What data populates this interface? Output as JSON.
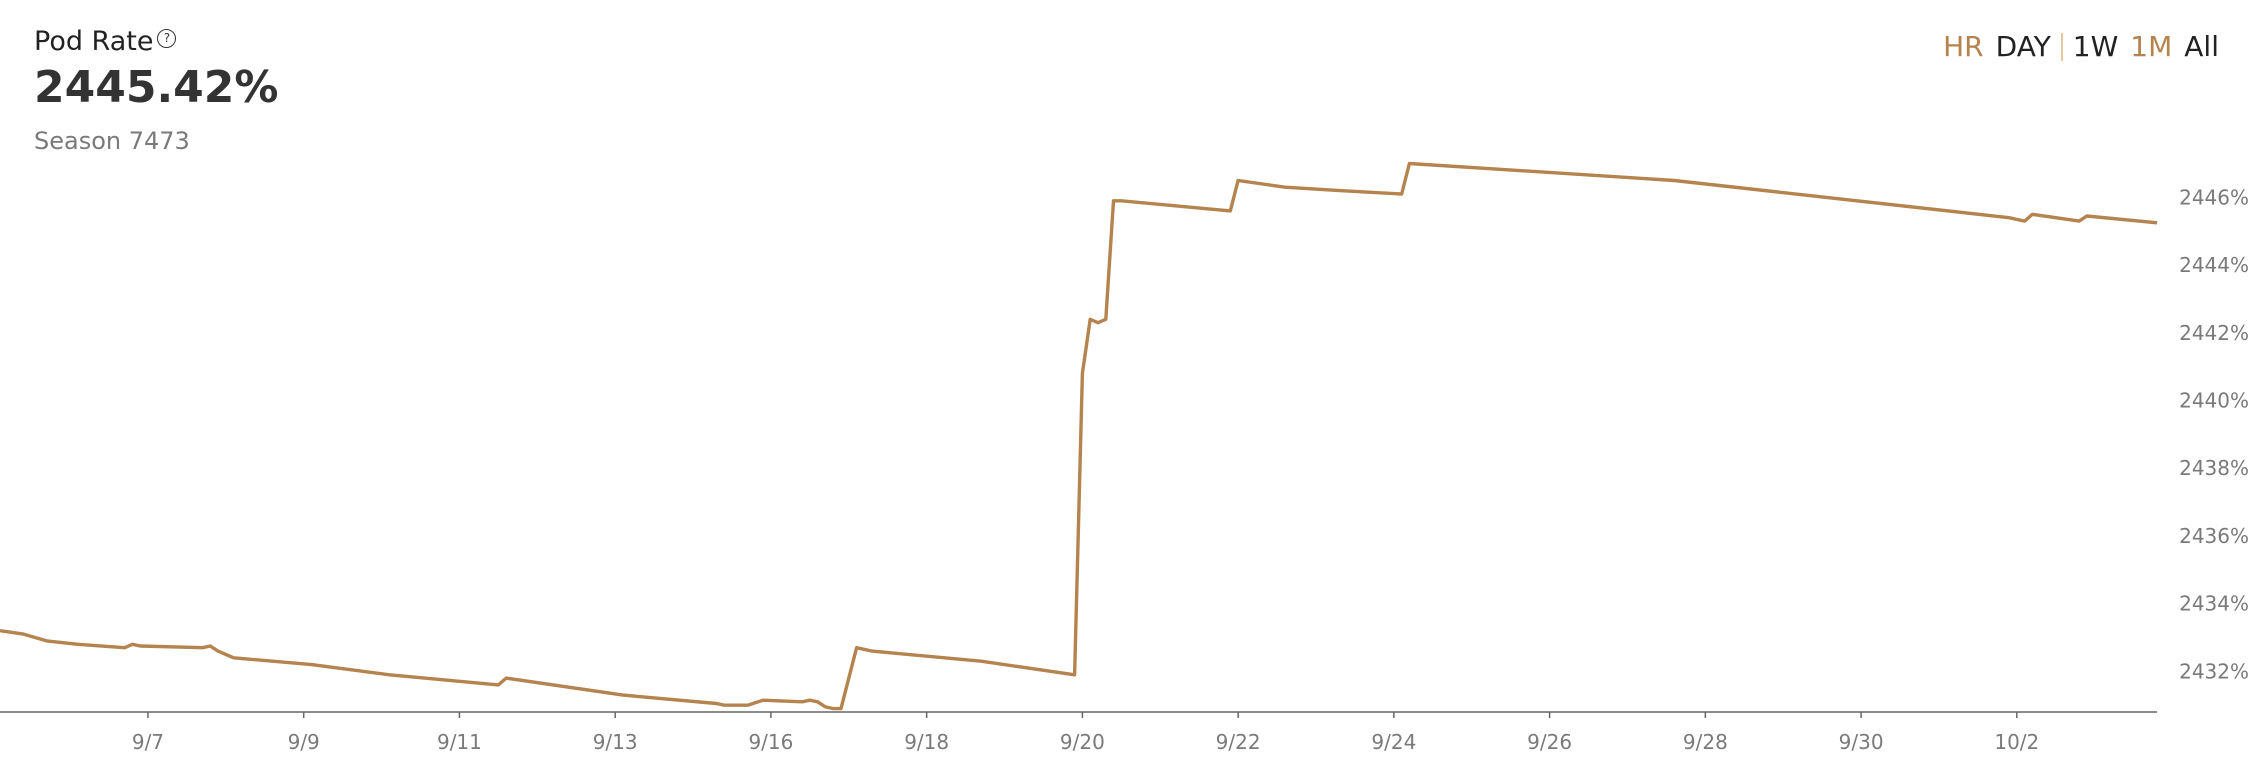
{
  "header": {
    "title": "Pod Rate",
    "help_icon": "question-circle-icon",
    "help_glyph": "?",
    "value": "2445.42%",
    "season": "Season 7473"
  },
  "range_selector": {
    "options": [
      "HR",
      "DAY",
      "1W",
      "1M",
      "All"
    ],
    "accent_color": "#b4834e"
  },
  "chart_data": {
    "type": "line",
    "line_color": "#b4834e",
    "x_ticks": [
      "9/7",
      "9/9",
      "9/11",
      "9/13",
      "9/16",
      "9/18",
      "9/20",
      "9/22",
      "9/24",
      "9/26",
      "9/28",
      "9/30",
      "10/2"
    ],
    "y_ticks": [
      "2432%",
      "2434%",
      "2436%",
      "2438%",
      "2440%",
      "2442%",
      "2444%",
      "2446%"
    ],
    "ylim": [
      2430.8,
      2447.4
    ],
    "grid": false,
    "series": [
      {
        "x": [
          5.0,
          5.3,
          5.6,
          6.0,
          6.6,
          6.7,
          6.8,
          7.6,
          7.7,
          7.8,
          8.0,
          9.0,
          10.0,
          11.4,
          11.5,
          13.0,
          14.2,
          14.3,
          14.6,
          14.8,
          15.3,
          15.4,
          15.5,
          15.6,
          15.7,
          15.8,
          16.0,
          16.2,
          17.6,
          18.8,
          18.9,
          19.0,
          19.1,
          19.2,
          19.3,
          19.4,
          20.8,
          20.9,
          21.5,
          22.2,
          23.0,
          23.1,
          26.5,
          30.8,
          31.0,
          31.1,
          31.7,
          31.8,
          32.7
        ],
        "values": [
          2433.2,
          2433.1,
          2432.9,
          2432.8,
          2432.7,
          2432.8,
          2432.75,
          2432.7,
          2432.75,
          2432.6,
          2432.4,
          2432.2,
          2431.9,
          2431.6,
          2431.8,
          2431.3,
          2431.05,
          2431.0,
          2431.0,
          2431.15,
          2431.1,
          2431.15,
          2431.1,
          2430.95,
          2430.9,
          2430.9,
          2432.7,
          2432.6,
          2432.3,
          2431.9,
          2440.8,
          2442.4,
          2442.3,
          2442.4,
          2445.9,
          2445.9,
          2445.6,
          2446.5,
          2446.3,
          2446.2,
          2446.1,
          2447.0,
          2446.5,
          2445.4,
          2445.3,
          2445.5,
          2445.3,
          2445.45,
          2445.25
        ]
      }
    ]
  }
}
